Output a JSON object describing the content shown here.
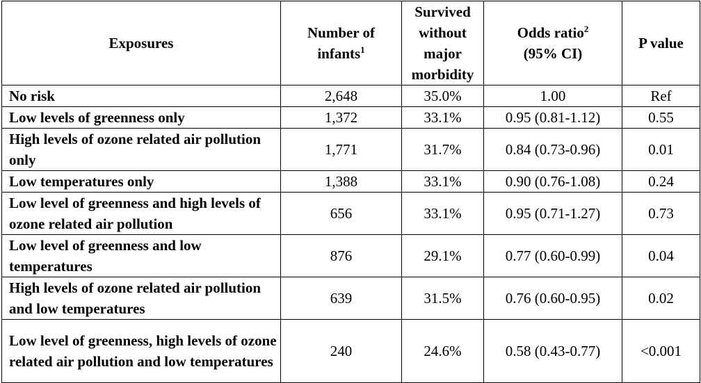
{
  "columns": {
    "exposures": "Exposures",
    "infants": "Number of infants",
    "infants_sup": "1",
    "survived": "Survived without major morbidity",
    "odds": "Odds ratio",
    "odds_sup": "2",
    "odds_ci": "(95% CI)",
    "pvalue": "P value"
  },
  "rows": [
    {
      "exposure": "No risk",
      "infants": "2,648",
      "survived": "35.0%",
      "odds": "1.00",
      "p": "Ref"
    },
    {
      "exposure": "Low levels of greenness only",
      "infants": "1,372",
      "survived": "33.1%",
      "odds": "0.95 (0.81-1.12)",
      "p": "0.55"
    },
    {
      "exposure": "High levels of ozone related air pollution only",
      "infants": "1,771",
      "survived": "31.7%",
      "odds": "0.84 (0.73-0.96)",
      "p": "0.01"
    },
    {
      "exposure": "Low temperatures only",
      "infants": "1,388",
      "survived": "33.1%",
      "odds": "0.90 (0.76-1.08)",
      "p": "0.24"
    },
    {
      "exposure": "Low level of greenness and high levels of ozone related air pollution",
      "infants": "656",
      "survived": "33.1%",
      "odds": "0.95 (0.71-1.27)",
      "p": "0.73"
    },
    {
      "exposure": "Low level of greenness and low temperatures",
      "infants": "876",
      "survived": "29.1%",
      "odds": "0.77 (0.60-0.99)",
      "p": "0.04"
    },
    {
      "exposure": "High levels of ozone related air pollution and low temperatures",
      "infants": "639",
      "survived": "31.5%",
      "odds": "0.76 (0.60-0.95)",
      "p": "0.02"
    },
    {
      "exposure": "Low level of greenness, high levels of ozone related air pollution and low temperatures",
      "infants": "240",
      "survived": "24.6%",
      "odds": "0.58 (0.43-0.77)",
      "p": "<0.001"
    }
  ]
}
